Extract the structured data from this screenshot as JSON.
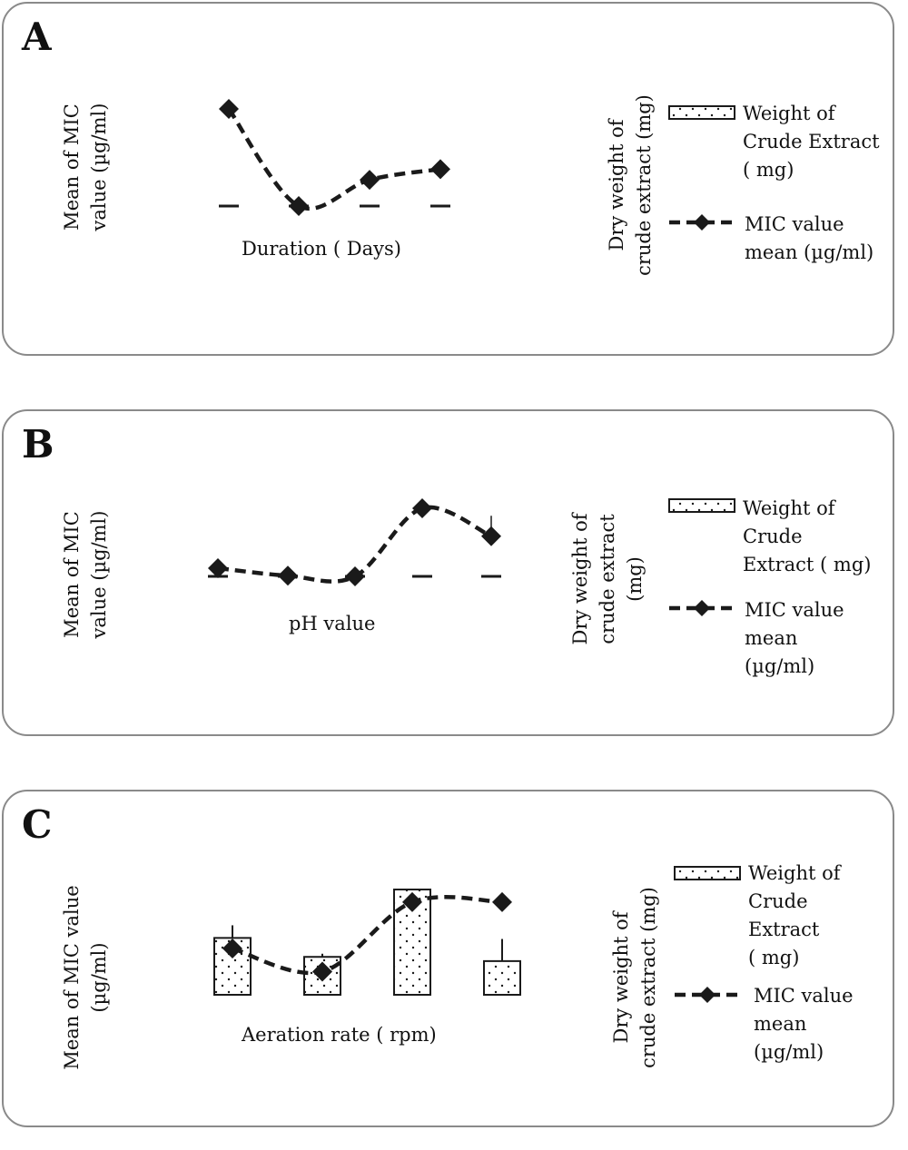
{
  "panels": [
    {
      "letter": "A",
      "ylabel_left": [
        "Mean of MIC",
        "value (µg/ml)"
      ],
      "ylabel_right": [
        "Dry weight of",
        "crude extract (mg)"
      ],
      "xlabel": "Duration ( Days)",
      "legend": {
        "bar_label": [
          "Weight of",
          "Crude Extract",
          "( mg)"
        ],
        "line_label": [
          "MIC value",
          "mean (µg/ml)"
        ]
      }
    },
    {
      "letter": "B",
      "ylabel_left": [
        "Mean of MIC",
        "value (µg/ml)"
      ],
      "ylabel_right": [
        "Dry weight of",
        "crude extract",
        "(mg)"
      ],
      "xlabel": "pH value",
      "legend": {
        "bar_label": [
          "Weight of",
          "Crude",
          "Extract ( mg)"
        ],
        "line_label": [
          "MIC value",
          "mean",
          "(µg/ml)"
        ]
      }
    },
    {
      "letter": "C",
      "ylabel_left": [
        "Mean of MIC value",
        "(µg/ml)"
      ],
      "ylabel_right": [
        "Dry weight of",
        "crude extract (mg)"
      ],
      "xlabel": "Aeration rate ( rpm)",
      "legend": {
        "bar_label": [
          "Weight of",
          "Crude",
          "Extract",
          "( mg)"
        ],
        "line_label": [
          "MIC value",
          "mean",
          "(µg/ml)"
        ]
      }
    }
  ],
  "chart_data": [
    {
      "type": "bar",
      "panel": "A",
      "xlabel": "Duration ( Days)",
      "ylabel": "Mean of MIC value (µg/ml)",
      "y2label": "Dry weight of crude extract (mg)",
      "series": [
        {
          "name": "Weight of Crude Extract ( mg)",
          "kind": "bar",
          "values": [
            0.0,
            0.0,
            0.0,
            0.0
          ],
          "errors": [
            0,
            0,
            0,
            0
          ]
        },
        {
          "name": "MIC value mean (µg/ml)",
          "kind": "line",
          "values": [
            100,
            0,
            27,
            38
          ],
          "errors": [
            0,
            0,
            0,
            0
          ]
        }
      ],
      "ylim": [
        0,
        110
      ],
      "grid": false
    },
    {
      "type": "bar",
      "panel": "B",
      "xlabel": "pH value",
      "ylabel": "Mean of MIC value (µg/ml)",
      "y2label": "Dry weight of crude extract (mg)",
      "series": [
        {
          "name": "Weight of Crude Extract ( mg)",
          "kind": "bar",
          "values": [
            0.0,
            0.0,
            0.0,
            0.0,
            0.0
          ],
          "errors": [
            0,
            0,
            0,
            0,
            0
          ]
        },
        {
          "name": "MIC value mean (µg/ml)",
          "kind": "line",
          "values": [
            12,
            1,
            0,
            100,
            59
          ],
          "errors": [
            0,
            0,
            0,
            0,
            30
          ]
        }
      ],
      "ylim": [
        0,
        110
      ],
      "grid": false
    },
    {
      "type": "bar",
      "panel": "C",
      "xlabel": "Aeration rate ( rpm)",
      "ylabel": "Mean of MIC value (µg/ml)",
      "y2label": "Dry weight of crude extract (mg)",
      "series": [
        {
          "name": "Weight of Crude Extract ( mg)",
          "kind": "bar",
          "values": [
            54,
            36,
            100,
            32
          ],
          "errors": [
            12,
            3,
            0,
            21
          ]
        },
        {
          "name": "MIC value mean (µg/ml)",
          "kind": "line",
          "values": [
            44,
            22,
            88,
            88
          ],
          "errors": [
            0,
            0,
            0,
            0
          ]
        }
      ],
      "ylim": [
        0,
        110
      ],
      "grid": false
    }
  ],
  "colors": {
    "line": "#1a1a1a",
    "bar_fill": "#ffffff",
    "bar_stroke": "#1a1a1a",
    "frame": "#8a8a8a"
  },
  "icons": {
    "marker": "diamond-marker",
    "bar_pattern": "dotted-pattern"
  }
}
